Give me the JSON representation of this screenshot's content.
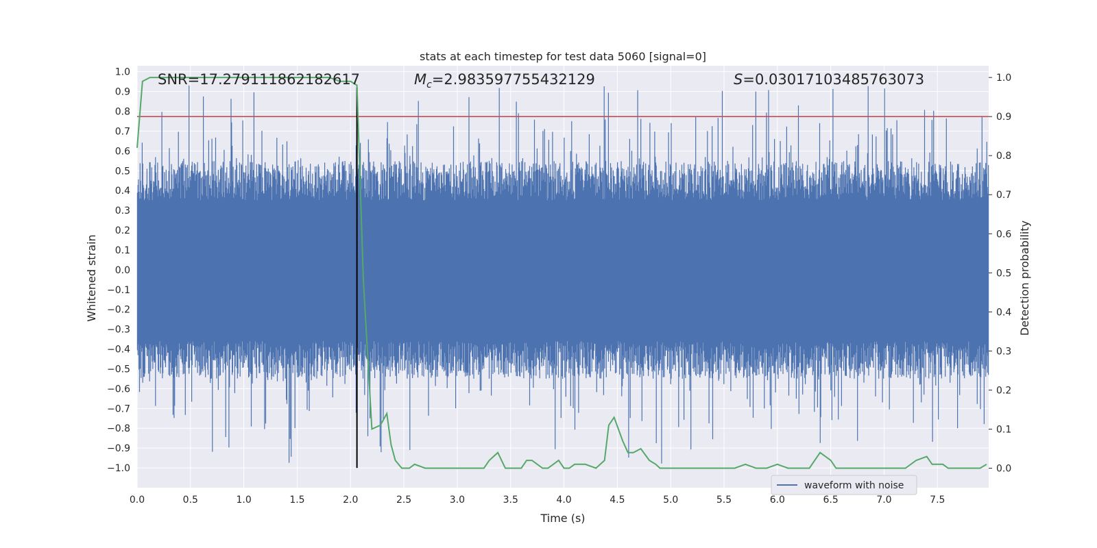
{
  "chart_data": {
    "type": "line",
    "title": "stats at each timestep for test data 5060 [signal=0]",
    "xlabel": "Time (s)",
    "ylabel_left": "Whitened strain",
    "ylabel_right": "Detection probability",
    "xlim": [
      0.0,
      7.98
    ],
    "ylim_left": [
      -1.1,
      1.03
    ],
    "ylim_right": [
      -0.05,
      1.03
    ],
    "xticks": [
      0.0,
      0.5,
      1.0,
      1.5,
      2.0,
      2.5,
      3.0,
      3.5,
      4.0,
      4.5,
      5.0,
      5.5,
      6.0,
      6.5,
      7.0,
      7.5
    ],
    "xtick_labels": [
      "0.0",
      "0.5",
      "1.0",
      "1.5",
      "2.0",
      "2.5",
      "3.0",
      "3.5",
      "4.0",
      "4.5",
      "5.0",
      "5.5",
      "6.0",
      "6.5",
      "7.0",
      "7.5"
    ],
    "yticks_left": [
      1.0,
      0.9,
      0.8,
      0.7,
      0.6,
      0.5,
      0.4,
      0.3,
      0.2,
      0.1,
      0.0,
      -0.1,
      -0.2,
      -0.3,
      -0.4,
      -0.5,
      -0.6,
      -0.7,
      -0.8,
      -0.9,
      -1.0
    ],
    "ytick_labels_left": [
      "1.0",
      "0.9",
      "0.8",
      "0.7",
      "0.6",
      "0.5",
      "0.4",
      "0.3",
      "0.2",
      "0.1",
      "0.0",
      "−0.1",
      "−0.2",
      "−0.3",
      "−0.4",
      "−0.5",
      "−0.6",
      "−0.7",
      "−0.8",
      "−0.9",
      "−1.0"
    ],
    "yticks_right": [
      1.0,
      0.9,
      0.8,
      0.7,
      0.6,
      0.5,
      0.4,
      0.3,
      0.2,
      0.1,
      0.0
    ],
    "ytick_labels_right": [
      "1.0",
      "0.9",
      "0.8",
      "0.7",
      "0.6",
      "0.5",
      "0.4",
      "0.3",
      "0.2",
      "0.1",
      "0.0"
    ],
    "annotations": {
      "snr": "SNR=17.279111862182617",
      "mc_symbol": "M",
      "mc_subscript": "c",
      "mc_value": "=2.983597755432129",
      "s_symbol": "S",
      "s_value": "=0.03017103485763073"
    },
    "threshold": {
      "axis": "right",
      "value": 0.9,
      "color": "#c44e52"
    },
    "marker_time": {
      "x": 2.06,
      "y_top": 0.92,
      "y_bottom": -1.0,
      "color": "#000000"
    },
    "waveform": {
      "name": "waveform with noise",
      "color": "#4c72b0",
      "sample_count": 1600,
      "seed": 5060,
      "dense_band": [
        -0.36,
        0.35
      ],
      "typical_upper": 0.55,
      "typical_lower": -0.55
    },
    "probability_series": {
      "name": "detection probability",
      "color": "#55a868",
      "x": [
        0.0,
        0.05,
        0.12,
        0.2,
        0.4,
        0.8,
        1.2,
        1.6,
        1.8,
        1.9,
        2.0,
        2.06,
        2.12,
        2.2,
        2.28,
        2.34,
        2.38,
        2.42,
        2.48,
        2.55,
        2.6,
        2.7,
        2.8,
        2.9,
        3.0,
        3.1,
        3.2,
        3.25,
        3.3,
        3.38,
        3.45,
        3.5,
        3.6,
        3.65,
        3.7,
        3.8,
        3.85,
        3.9,
        3.95,
        4.0,
        4.05,
        4.1,
        4.2,
        4.3,
        4.38,
        4.42,
        4.47,
        4.55,
        4.6,
        4.65,
        4.72,
        4.8,
        4.86,
        4.9,
        5.0,
        5.1,
        5.2,
        5.3,
        5.4,
        5.5,
        5.6,
        5.7,
        5.8,
        5.9,
        6.0,
        6.1,
        6.2,
        6.3,
        6.35,
        6.4,
        6.5,
        6.55,
        6.6,
        6.7,
        6.8,
        6.9,
        7.0,
        7.1,
        7.2,
        7.3,
        7.4,
        7.45,
        7.5,
        7.55,
        7.6,
        7.7,
        7.8,
        7.9,
        7.96
      ],
      "y": [
        0.82,
        0.99,
        1.0,
        1.0,
        1.0,
        1.0,
        1.0,
        1.0,
        1.0,
        0.99,
        0.99,
        0.98,
        0.48,
        0.1,
        0.11,
        0.14,
        0.06,
        0.02,
        0.0,
        0.0,
        0.01,
        0.0,
        0.0,
        0.0,
        0.0,
        0.0,
        0.0,
        0.0,
        0.02,
        0.04,
        0.0,
        0.0,
        0.0,
        0.02,
        0.02,
        0.0,
        0.0,
        0.01,
        0.02,
        0.0,
        0.0,
        0.01,
        0.01,
        0.0,
        0.02,
        0.11,
        0.13,
        0.07,
        0.04,
        0.04,
        0.05,
        0.02,
        0.01,
        0.0,
        0.0,
        0.0,
        0.0,
        0.0,
        0.0,
        0.0,
        0.0,
        0.01,
        0.0,
        0.0,
        0.01,
        0.0,
        0.0,
        0.0,
        0.02,
        0.04,
        0.02,
        0.0,
        0.0,
        0.0,
        0.0,
        0.0,
        0.0,
        0.0,
        0.0,
        0.02,
        0.03,
        0.01,
        0.01,
        0.01,
        0.0,
        0.0,
        0.0,
        0.0,
        0.01
      ]
    },
    "legend": {
      "placement": "lower-right",
      "entries": [
        "waveform with noise"
      ]
    },
    "grid": true
  }
}
